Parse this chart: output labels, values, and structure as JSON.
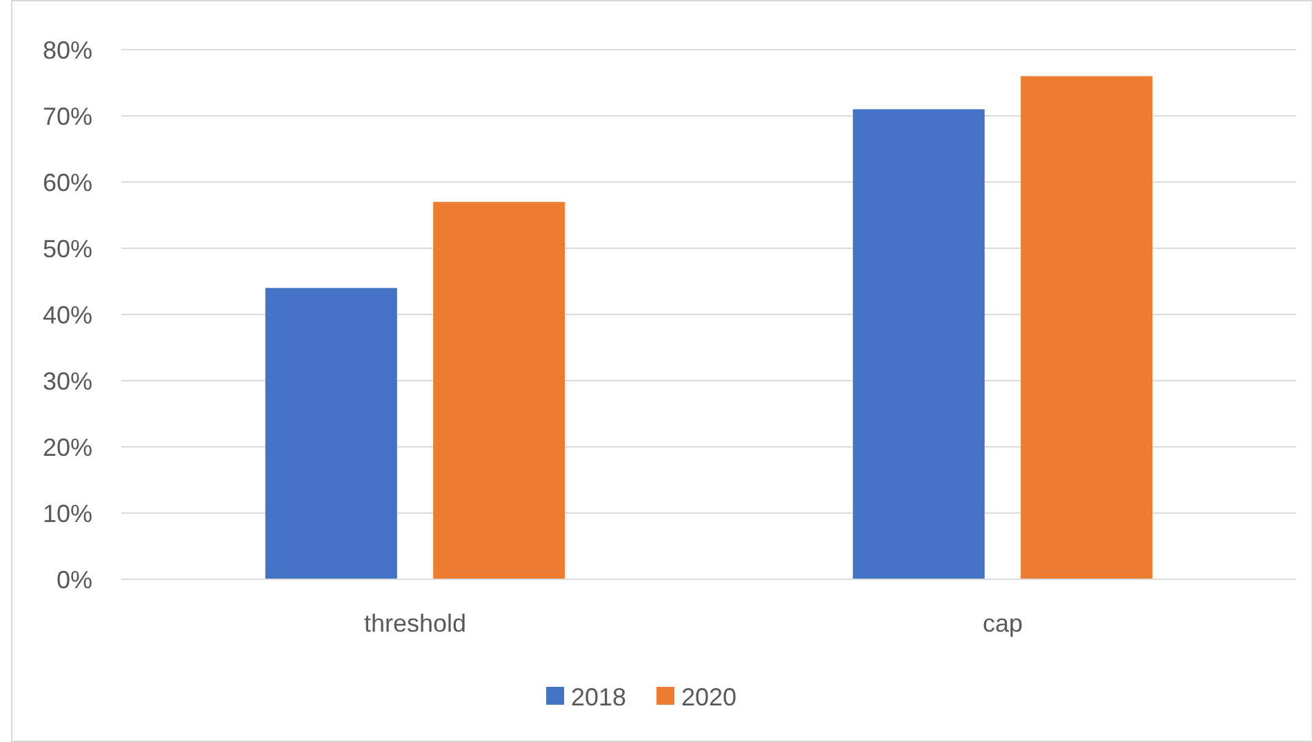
{
  "chart_data": {
    "type": "bar",
    "categories": [
      "threshold",
      "cap"
    ],
    "series": [
      {
        "name": "2018",
        "color": "#4472c4",
        "values": [
          44,
          71
        ]
      },
      {
        "name": "2020",
        "color": "#ed7d31",
        "values": [
          57,
          76
        ]
      }
    ],
    "ylim": [
      0,
      80
    ],
    "yticks": [
      {
        "value": 0,
        "label": "0%"
      },
      {
        "value": 10,
        "label": "10%"
      },
      {
        "value": 20,
        "label": "20%"
      },
      {
        "value": 30,
        "label": "30%"
      },
      {
        "value": 40,
        "label": "40%"
      },
      {
        "value": 50,
        "label": "50%"
      },
      {
        "value": 60,
        "label": "60%"
      },
      {
        "value": 70,
        "label": "70%"
      },
      {
        "value": 80,
        "label": "80%"
      }
    ],
    "grid": "y",
    "legend": "bottom"
  }
}
